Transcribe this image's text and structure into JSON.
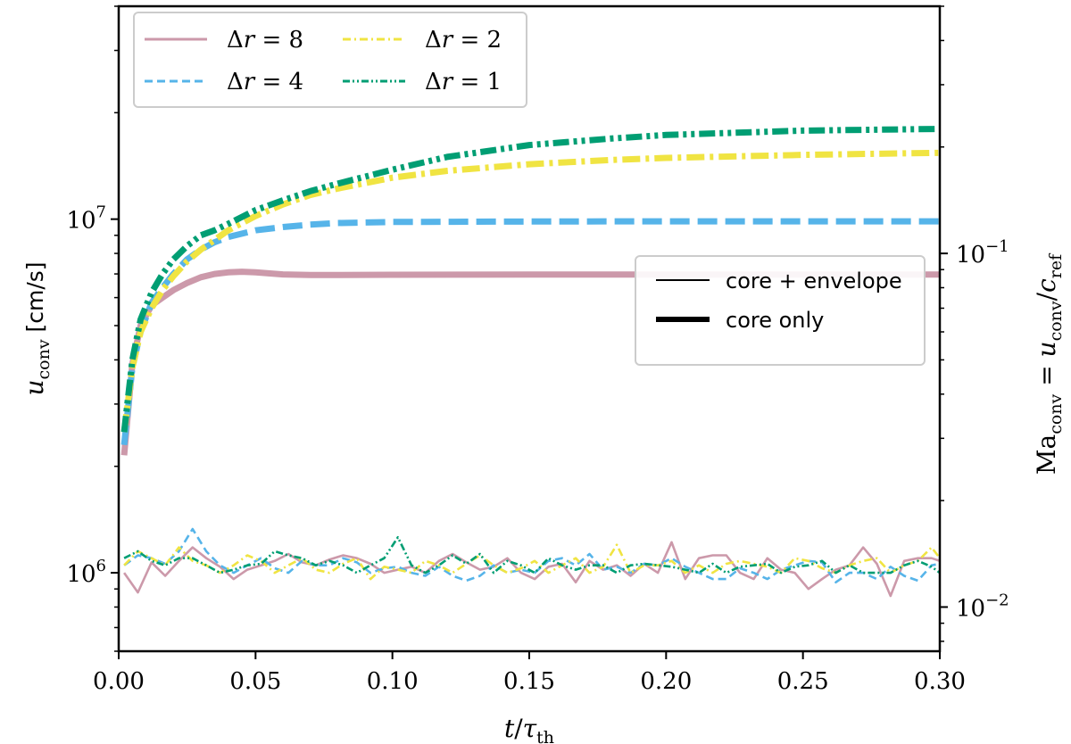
{
  "chart_data": {
    "type": "line",
    "xlabel": "t/τ_th",
    "ylabel": "u_conv [cm/s]",
    "ylabel_right": "Ma_conv = u_conv/c_ref",
    "xlim": [
      0.0,
      0.3
    ],
    "ylim": [
      600000,
      40000000
    ],
    "yscale": "log",
    "ylim_right": [
      0.0075,
      0.5
    ],
    "ref_speed_cm_s": 80000000,
    "xticks": [
      "0.00",
      "0.05",
      "0.10",
      "0.15",
      "0.20",
      "0.25",
      "0.30"
    ],
    "yticks_left": [
      {
        "value": 1000000,
        "base": "10",
        "exp": "6"
      },
      {
        "value": 10000000,
        "base": "10",
        "exp": "7"
      }
    ],
    "yticks_right": [
      {
        "value": 0.01,
        "base": "10",
        "exp": "−2"
      },
      {
        "value": 0.1,
        "base": "10",
        "exp": "−1"
      }
    ],
    "legend_resolution": {
      "location": "top-left",
      "entries": [
        {
          "label": "Δr = 8",
          "series": "dr8"
        },
        {
          "label": "Δr = 4",
          "series": "dr4"
        },
        {
          "label": "Δr = 2",
          "series": "dr2"
        },
        {
          "label": "Δr = 1",
          "series": "dr1"
        }
      ]
    },
    "legend_style": {
      "location": "center-right",
      "entries": [
        {
          "label": "core + envelope",
          "thickness": "thin"
        },
        {
          "label": "core only",
          "thickness": "thick"
        }
      ]
    },
    "colors": {
      "dr8": "#cc99aa",
      "dr4": "#56b4e9",
      "dr2": "#f0e442",
      "dr1": "#009e73"
    },
    "series": [
      {
        "name": "Δr = 8",
        "key": "dr8",
        "variant": "core only",
        "dash": "solid",
        "x": [
          0.002,
          0.005,
          0.008,
          0.012,
          0.016,
          0.02,
          0.025,
          0.03,
          0.035,
          0.04,
          0.045,
          0.05,
          0.06,
          0.07,
          0.1,
          0.15,
          0.2,
          0.25,
          0.3
        ],
        "values": [
          2150000,
          3900000,
          5000000,
          5700000,
          6000000,
          6300000,
          6600000,
          6850000,
          7000000,
          7070000,
          7100000,
          7070000,
          6980000,
          6950000,
          6960000,
          6970000,
          6970000,
          6970000,
          6970000
        ]
      },
      {
        "name": "Δr = 4",
        "key": "dr4",
        "variant": "core only",
        "dash": "dashed",
        "x": [
          0.002,
          0.005,
          0.008,
          0.012,
          0.016,
          0.02,
          0.025,
          0.03,
          0.035,
          0.04,
          0.05,
          0.06,
          0.07,
          0.08,
          0.1,
          0.15,
          0.2,
          0.25,
          0.3
        ],
        "values": [
          2300000,
          3800000,
          4800000,
          5800000,
          6400000,
          7000000,
          7700000,
          8200000,
          8600000,
          8900000,
          9300000,
          9500000,
          9650000,
          9750000,
          9820000,
          9850000,
          9860000,
          9860000,
          9860000
        ]
      },
      {
        "name": "Δr = 2",
        "key": "dr2",
        "variant": "core only",
        "dash": "dash-dot",
        "x": [
          0.002,
          0.005,
          0.008,
          0.012,
          0.016,
          0.02,
          0.025,
          0.03,
          0.04,
          0.05,
          0.06,
          0.07,
          0.08,
          0.1,
          0.12,
          0.15,
          0.18,
          0.2,
          0.25,
          0.3
        ],
        "values": [
          2500000,
          3800000,
          4800000,
          5600000,
          6300000,
          6900000,
          7600000,
          8200000,
          9300000,
          10200000,
          11000000,
          11700000,
          12200000,
          13100000,
          13700000,
          14300000,
          14700000,
          14900000,
          15200000,
          15400000
        ]
      },
      {
        "name": "Δr = 1",
        "key": "dr1",
        "variant": "core only",
        "dash": "dash-dot-dot",
        "x": [
          0.002,
          0.005,
          0.008,
          0.012,
          0.016,
          0.02,
          0.025,
          0.03,
          0.035,
          0.04,
          0.05,
          0.06,
          0.07,
          0.08,
          0.1,
          0.12,
          0.15,
          0.18,
          0.2,
          0.25,
          0.3
        ],
        "values": [
          2500000,
          4000000,
          5200000,
          6200000,
          7000000,
          7700000,
          8400000,
          9000000,
          9300000,
          9700000,
          10600000,
          11300000,
          12000000,
          12600000,
          13800000,
          15000000,
          16200000,
          16900000,
          17300000,
          17800000,
          18000000
        ]
      },
      {
        "name": "Δr = 8",
        "key": "dr8",
        "variant": "core + envelope",
        "dash": "solid",
        "x": [
          0.002,
          0.007,
          0.012,
          0.017,
          0.022,
          0.027,
          0.032,
          0.037,
          0.042,
          0.047,
          0.052,
          0.057,
          0.062,
          0.067,
          0.072,
          0.077,
          0.082,
          0.087,
          0.092,
          0.097,
          0.102,
          0.107,
          0.112,
          0.117,
          0.122,
          0.127,
          0.132,
          0.137,
          0.142,
          0.147,
          0.152,
          0.157,
          0.162,
          0.167,
          0.172,
          0.177,
          0.182,
          0.187,
          0.192,
          0.197,
          0.202,
          0.207,
          0.212,
          0.217,
          0.222,
          0.227,
          0.232,
          0.237,
          0.242,
          0.247,
          0.252,
          0.257,
          0.262,
          0.267,
          0.272,
          0.277,
          0.282,
          0.287,
          0.292,
          0.297,
          0.3
        ],
        "values": [
          1000000,
          880000,
          1070000,
          980000,
          1080000,
          1180000,
          1100000,
          1040000,
          960000,
          1020000,
          1050000,
          1080000,
          1130000,
          1070000,
          1050000,
          1090000,
          1120000,
          1100000,
          1060000,
          1000000,
          1020000,
          1040000,
          1000000,
          1080000,
          1130000,
          1070000,
          1020000,
          1040000,
          1100000,
          1000000,
          960000,
          1040000,
          1060000,
          940000,
          1080000,
          1020000,
          1050000,
          980000,
          1060000,
          1000000,
          1220000,
          960000,
          1100000,
          1120000,
          1120000,
          1000000,
          960000,
          1100000,
          1020000,
          1000000,
          900000,
          960000,
          1020000,
          1050000,
          1180000,
          1060000,
          860000,
          1080000,
          1100000,
          1100000,
          1080000
        ]
      },
      {
        "name": "Δr = 4",
        "key": "dr4",
        "variant": "core + envelope",
        "dash": "dashed",
        "x": [
          0.002,
          0.007,
          0.012,
          0.017,
          0.022,
          0.027,
          0.032,
          0.037,
          0.042,
          0.047,
          0.052,
          0.057,
          0.062,
          0.067,
          0.072,
          0.077,
          0.082,
          0.087,
          0.092,
          0.097,
          0.102,
          0.107,
          0.112,
          0.117,
          0.122,
          0.127,
          0.132,
          0.137,
          0.142,
          0.147,
          0.152,
          0.157,
          0.162,
          0.167,
          0.172,
          0.177,
          0.182,
          0.187,
          0.192,
          0.197,
          0.202,
          0.207,
          0.212,
          0.217,
          0.222,
          0.227,
          0.232,
          0.237,
          0.242,
          0.247,
          0.252,
          0.257,
          0.262,
          0.267,
          0.272,
          0.277,
          0.282,
          0.287,
          0.292,
          0.297,
          0.3
        ],
        "values": [
          1050000,
          1120000,
          1100000,
          1060000,
          1150000,
          1330000,
          1150000,
          1050000,
          1000000,
          1050000,
          1100000,
          1030000,
          1000000,
          1080000,
          1050000,
          1050000,
          1100000,
          1070000,
          1000000,
          1030000,
          1040000,
          1000000,
          980000,
          1040000,
          980000,
          950000,
          980000,
          1050000,
          1000000,
          1020000,
          1000000,
          1080000,
          1100000,
          1050000,
          1130000,
          1020000,
          1040000,
          1000000,
          1060000,
          1050000,
          1100000,
          1040000,
          1000000,
          960000,
          960000,
          1030000,
          1000000,
          960000,
          1020000,
          1050000,
          1080000,
          1070000,
          940000,
          1000000,
          1000000,
          960000,
          1040000,
          980000,
          950000,
          1050000,
          1060000
        ]
      },
      {
        "name": "Δr = 2",
        "key": "dr2",
        "variant": "core + envelope",
        "dash": "dash-dot",
        "x": [
          0.002,
          0.007,
          0.012,
          0.017,
          0.022,
          0.027,
          0.032,
          0.037,
          0.042,
          0.047,
          0.052,
          0.057,
          0.062,
          0.067,
          0.072,
          0.077,
          0.082,
          0.087,
          0.092,
          0.097,
          0.102,
          0.107,
          0.112,
          0.117,
          0.122,
          0.127,
          0.132,
          0.137,
          0.142,
          0.147,
          0.152,
          0.157,
          0.162,
          0.167,
          0.172,
          0.177,
          0.182,
          0.187,
          0.192,
          0.197,
          0.202,
          0.207,
          0.212,
          0.217,
          0.222,
          0.227,
          0.232,
          0.237,
          0.242,
          0.247,
          0.252,
          0.257,
          0.262,
          0.267,
          0.272,
          0.277,
          0.282,
          0.287,
          0.292,
          0.297,
          0.3
        ],
        "values": [
          1050000,
          1150000,
          1100000,
          1050000,
          1180000,
          1080000,
          1050000,
          1000000,
          1050000,
          1120000,
          1080000,
          1000000,
          1050000,
          1100000,
          1020000,
          1000000,
          1060000,
          1100000,
          960000,
          1040000,
          1020000,
          1000000,
          1080000,
          1050000,
          1000000,
          1060000,
          1120000,
          1050000,
          1000000,
          1030000,
          1080000,
          1000000,
          1050000,
          1100000,
          1000000,
          1040000,
          1200000,
          1000000,
          1050000,
          1050000,
          1080000,
          1000000,
          1050000,
          1000000,
          1060000,
          1080000,
          1060000,
          1040000,
          1000000,
          1100000,
          1080000,
          1030000,
          1000000,
          1050000,
          1080000,
          1100000,
          1000000,
          1050000,
          1080000,
          1180000,
          1100000
        ]
      },
      {
        "name": "Δr = 1",
        "key": "dr1",
        "variant": "core + envelope",
        "dash": "dash-dot-dot",
        "x": [
          0.002,
          0.007,
          0.012,
          0.017,
          0.022,
          0.027,
          0.032,
          0.037,
          0.042,
          0.047,
          0.052,
          0.057,
          0.062,
          0.067,
          0.072,
          0.077,
          0.082,
          0.087,
          0.092,
          0.097,
          0.102,
          0.107,
          0.112,
          0.117,
          0.122,
          0.127,
          0.132,
          0.137,
          0.142,
          0.147,
          0.152,
          0.157,
          0.162,
          0.167,
          0.172,
          0.177,
          0.182,
          0.187,
          0.192,
          0.197,
          0.202,
          0.207,
          0.212,
          0.217,
          0.222,
          0.227,
          0.232,
          0.237,
          0.242,
          0.247,
          0.252,
          0.257,
          0.262,
          0.267,
          0.272,
          0.277,
          0.282,
          0.287,
          0.292,
          0.297,
          0.3
        ],
        "values": [
          1100000,
          1150000,
          1080000,
          1050000,
          1100000,
          1100000,
          1050000,
          1000000,
          1020000,
          1050000,
          1060000,
          1150000,
          1120000,
          1100000,
          1050000,
          1080000,
          1050000,
          1000000,
          1050000,
          1100000,
          1260000,
          1050000,
          1000000,
          1050000,
          1120000,
          1060000,
          1130000,
          1000000,
          1080000,
          1050000,
          1000000,
          1100000,
          1050000,
          1020000,
          1050000,
          1050000,
          1000000,
          1050000,
          1060000,
          1050000,
          1040000,
          1020000,
          1000000,
          1060000,
          1000000,
          1040000,
          1050000,
          1060000,
          1000000,
          1040000,
          1050000,
          1080000,
          1000000,
          1050000,
          1000000,
          1000000,
          1000000,
          1050000,
          1080000,
          1040000,
          1000000
        ]
      }
    ]
  }
}
